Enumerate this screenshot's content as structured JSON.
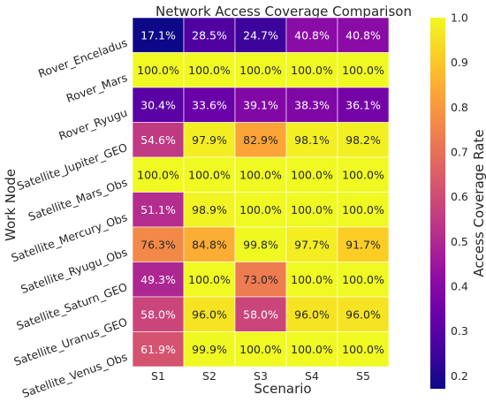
{
  "chart_data": {
    "type": "heatmap",
    "title": "Network Access Coverage Comparison",
    "xlabel": "Scenario",
    "ylabel": "Work Node",
    "colorbar_label": "Access Coverage Rate",
    "colormap": "plasma",
    "vmin": 0.171,
    "vmax": 1.0,
    "colorbar_ticks": [
      "0.2",
      "0.3",
      "0.4",
      "0.5",
      "0.6",
      "0.7",
      "0.8",
      "0.9",
      "1.0"
    ],
    "x_categories": [
      "S1",
      "S2",
      "S3",
      "S4",
      "S5"
    ],
    "y_categories": [
      "Rover_Enceladus",
      "Rover_Mars",
      "Rover_Ryugu",
      "Satellite_Jupiter_GEO",
      "Satellite_Mars_Obs",
      "Satellite_Mercury_Obs",
      "Satellite_Ryugu_Obs",
      "Satellite_Saturn_GEO",
      "Satellite_Uranus_GEO",
      "Satellite_Venus_Obs"
    ],
    "values": [
      [
        0.171,
        0.285,
        0.247,
        0.408,
        0.408
      ],
      [
        1.0,
        1.0,
        1.0,
        1.0,
        1.0
      ],
      [
        0.304,
        0.336,
        0.391,
        0.383,
        0.361
      ],
      [
        0.546,
        0.979,
        0.829,
        0.981,
        0.982
      ],
      [
        1.0,
        1.0,
        1.0,
        1.0,
        1.0
      ],
      [
        0.511,
        0.989,
        1.0,
        1.0,
        1.0
      ],
      [
        0.763,
        0.848,
        0.998,
        0.977,
        0.917
      ],
      [
        0.493,
        1.0,
        0.73,
        1.0,
        1.0
      ],
      [
        0.58,
        0.96,
        0.58,
        0.96,
        0.96
      ],
      [
        0.619,
        0.999,
        1.0,
        1.0,
        1.0
      ]
    ],
    "labels": [
      [
        "17.1%",
        "28.5%",
        "24.7%",
        "40.8%",
        "40.8%"
      ],
      [
        "100.0%",
        "100.0%",
        "100.0%",
        "100.0%",
        "100.0%"
      ],
      [
        "30.4%",
        "33.6%",
        "39.1%",
        "38.3%",
        "36.1%"
      ],
      [
        "54.6%",
        "97.9%",
        "82.9%",
        "98.1%",
        "98.2%"
      ],
      [
        "100.0%",
        "100.0%",
        "100.0%",
        "100.0%",
        "100.0%"
      ],
      [
        "51.1%",
        "98.9%",
        "100.0%",
        "100.0%",
        "100.0%"
      ],
      [
        "76.3%",
        "84.8%",
        "99.8%",
        "97.7%",
        "91.7%"
      ],
      [
        "49.3%",
        "100.0%",
        "73.0%",
        "100.0%",
        "100.0%"
      ],
      [
        "58.0%",
        "96.0%",
        "58.0%",
        "96.0%",
        "96.0%"
      ],
      [
        "61.9%",
        "99.9%",
        "100.0%",
        "100.0%",
        "100.0%"
      ]
    ]
  }
}
